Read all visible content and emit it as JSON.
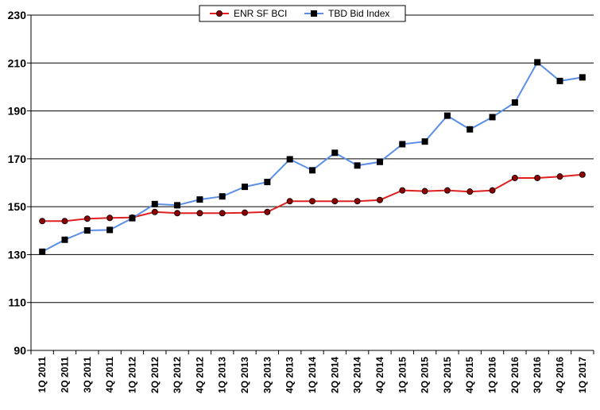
{
  "chart_data": {
    "type": "line",
    "categories": [
      "1Q 2011",
      "2Q 2011",
      "3Q 2011",
      "4Q 2011",
      "1Q 2012",
      "2Q 2012",
      "3Q 2012",
      "4Q 2012",
      "1Q 2013",
      "2Q 2013",
      "3Q 2013",
      "4Q 2013",
      "1Q 2014",
      "2Q 2014",
      "3Q 2014",
      "4Q 2014",
      "1Q 2015",
      "2Q 2015",
      "3Q 2015",
      "4Q 2015",
      "1Q 2016",
      "2Q 2016",
      "3Q 2016",
      "4Q 2016",
      "1Q 2017"
    ],
    "series": [
      {
        "name": "ENR SF BCI",
        "color": "#e02020",
        "marker": "circle",
        "values": [
          144,
          144,
          145,
          145.3,
          145.5,
          147.8,
          147.3,
          147.3,
          147.3,
          147.5,
          147.8,
          152.3,
          152.3,
          152.3,
          152.3,
          152.8,
          156.8,
          156.5,
          156.8,
          156.3,
          156.8,
          162,
          162,
          162.6,
          163.4
        ]
      },
      {
        "name": "TBD Bid Index",
        "color": "#5b8fe6",
        "marker": "square",
        "values": [
          131.2,
          136.2,
          140.1,
          140.3,
          145.2,
          151.1,
          150.6,
          153,
          154.3,
          158.3,
          160.3,
          169.8,
          165.2,
          172.5,
          167.2,
          168.7,
          176.1,
          177.2,
          188,
          182.3,
          187.4,
          193.5,
          210.3,
          202.5,
          204
        ]
      }
    ],
    "ylim": [
      90,
      230
    ],
    "yticks": [
      90,
      110,
      130,
      150,
      170,
      190,
      210,
      230
    ],
    "grid": true,
    "legend_position": "top-center",
    "title": "",
    "xlabel": "",
    "ylabel": ""
  }
}
